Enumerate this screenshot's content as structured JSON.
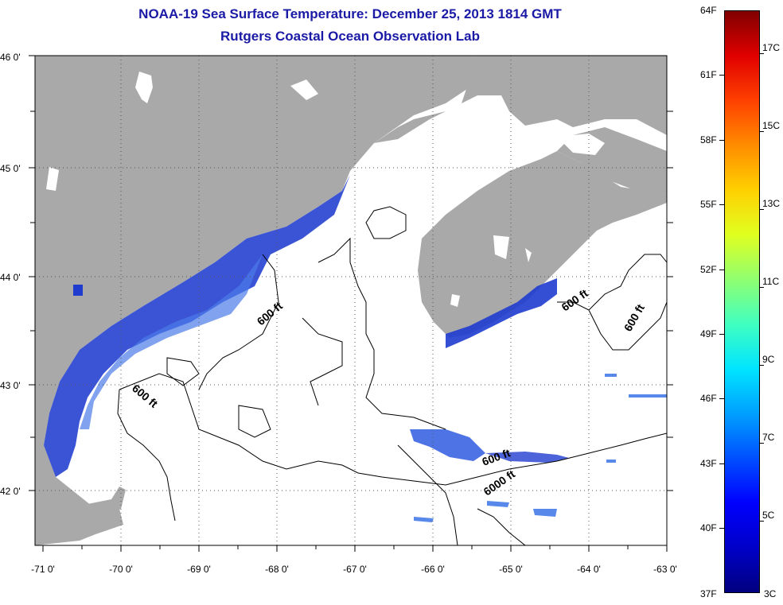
{
  "title": {
    "line1": "NOAA-19 Sea Surface Temperature:  December 25, 2013 1814 GMT",
    "line2": "Rutgers Coastal Ocean Observation Lab"
  },
  "colors": {
    "land": "#a9a9a9",
    "ocean": "#ffffff",
    "title": "#1a1aa6",
    "sst_cold": "#1f3ccf"
  },
  "axes": {
    "longitude_labels": [
      "-71 0'",
      "-70 0'",
      "-69 0'",
      "-68 0'",
      "-67 0'",
      "-66 0'",
      "-65 0'",
      "-64 0'",
      "-63 0'"
    ],
    "latitude_labels": [
      "46 0'",
      "45 0'",
      "44 0'",
      "43 0'",
      "42 0'"
    ]
  },
  "contour_labels": [
    "600 ft",
    "600 ft",
    "600 ft",
    "600 ft",
    "600 ft",
    "6000 ft"
  ],
  "colorbar": {
    "fahrenheit": [
      "64F",
      "61F",
      "58F",
      "55F",
      "52F",
      "49F",
      "46F",
      "43F",
      "40F",
      "37F"
    ],
    "celsius": [
      "17C",
      "15C",
      "13C",
      "11C",
      "9C",
      "7C",
      "5C",
      "3C"
    ],
    "scale": [
      "#00007f",
      "#0000c8",
      "#0000ff",
      "#0050ff",
      "#00a0ff",
      "#00e5ff",
      "#40ffc0",
      "#90ff70",
      "#e0ff20",
      "#ffd000",
      "#ff8c00",
      "#ff4000",
      "#e00000",
      "#800000"
    ]
  }
}
